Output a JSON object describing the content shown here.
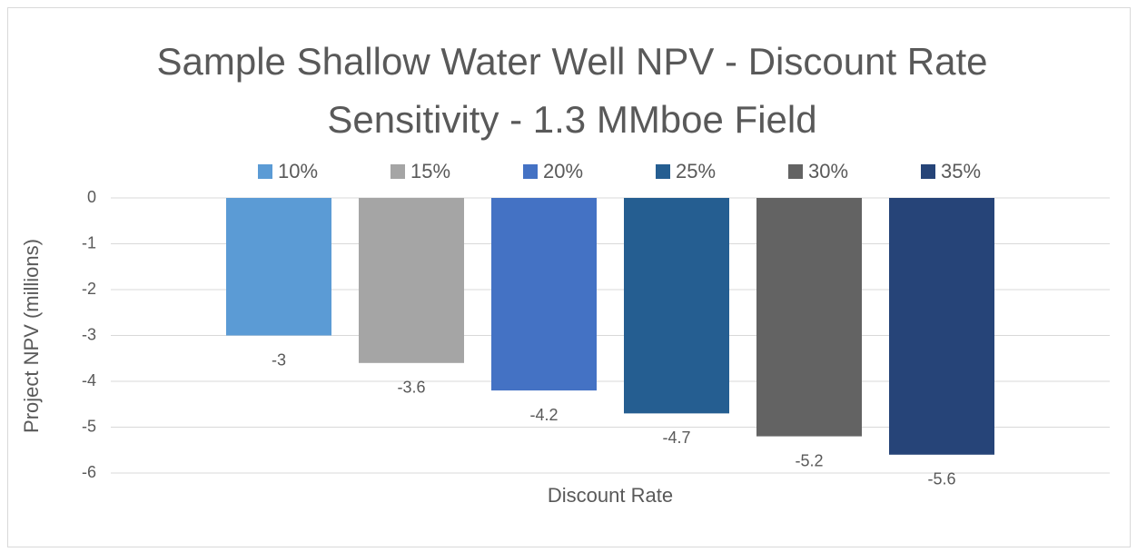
{
  "chart_data": {
    "type": "bar",
    "title": "Sample Shallow Water Well NPV - Discount Rate Sensitivity - 1.3 MMboe Field",
    "x_label": "Discount Rate",
    "y_label": "Project NPV (millions)",
    "categories": [
      null
    ],
    "series": [
      {
        "name": "10%",
        "color": "#5b9bd5",
        "values": [
          -3
        ]
      },
      {
        "name": "15%",
        "color": "#a5a5a5",
        "values": [
          -3.6
        ]
      },
      {
        "name": "20%",
        "color": "#4472c4",
        "values": [
          -4.2
        ]
      },
      {
        "name": "25%",
        "color": "#255e91",
        "values": [
          -4.7
        ]
      },
      {
        "name": "30%",
        "color": "#636363",
        "values": [
          -5.2
        ]
      },
      {
        "name": "35%",
        "color": "#264478",
        "values": [
          -5.6
        ]
      }
    ],
    "ylim": [
      -6,
      0
    ],
    "yticks": [
      0,
      -1,
      -2,
      -3,
      -4,
      -5,
      -6
    ],
    "grid": true,
    "legend": "top",
    "data_labels": true
  }
}
